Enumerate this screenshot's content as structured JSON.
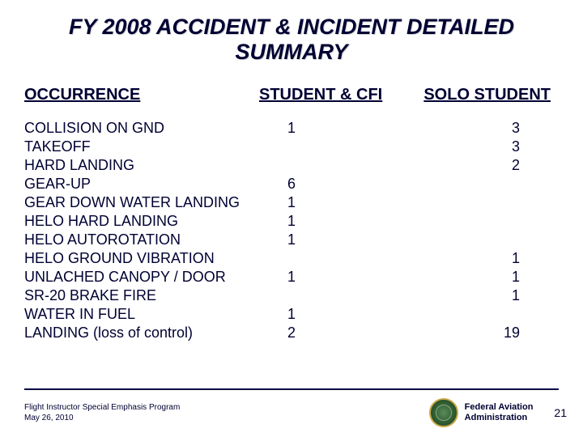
{
  "title_line1": "FY 2008   ACCIDENT  &  INCIDENT  DETAILED",
  "title_line2": "SUMMARY",
  "headers": {
    "col1": "OCCURRENCE",
    "col2": "STUDENT & CFI",
    "col3": "SOLO  STUDENT"
  },
  "rows": [
    {
      "label": "COLLISION ON GND",
      "v1": "1",
      "v2": "3"
    },
    {
      "label": "TAKEOFF",
      "v1": "",
      "v2": "3"
    },
    {
      "label": "HARD LANDING",
      "v1": "",
      "v2": "2"
    },
    {
      "label": "GEAR-UP",
      "v1": "6",
      "v2": ""
    },
    {
      "label": "GEAR DOWN WATER LANDING",
      "v1": "1",
      "v2": ""
    },
    {
      "label": "HELO HARD LANDING",
      "v1": "1",
      "v2": ""
    },
    {
      "label": "HELO AUTOROTATION",
      "v1": "1",
      "v2": ""
    },
    {
      "label": "HELO GROUND VIBRATION",
      "v1": "",
      "v2": "1"
    },
    {
      "label": "UNLACHED CANOPY / DOOR",
      "v1": "1",
      "v2": "1"
    },
    {
      "label": "SR-20 BRAKE FIRE",
      "v1": "",
      "v2": "1"
    },
    {
      "label": "WATER IN FUEL",
      "v1": "1",
      "v2": ""
    },
    {
      "label": "LANDING (loss of control)",
      "v1": "2",
      "v2": "19"
    }
  ],
  "footer": {
    "program": "Flight Instructor Special Emphasis Program",
    "date": "May 26, 2010",
    "agency_line1": "Federal Aviation",
    "agency_line2": "Administration",
    "page": "21"
  },
  "colors": {
    "text": "#000033",
    "background": "#ffffff"
  }
}
